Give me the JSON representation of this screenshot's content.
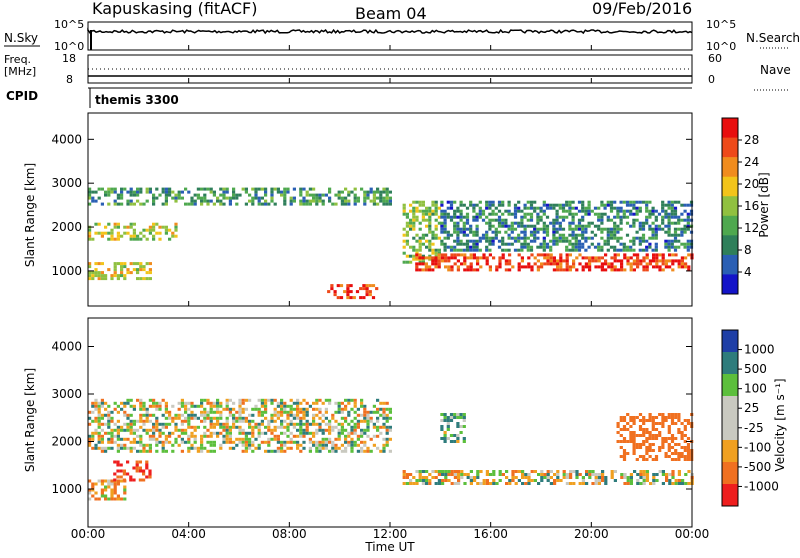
{
  "header": {
    "site": "Kapuskasing (fitACF)",
    "beam": "Beam 04",
    "date": "09/Feb/2016"
  },
  "panels": {
    "nsky": {
      "label": "N.Sky",
      "right_label": "N.Search",
      "ticks_left": [
        "10^5",
        "10^0"
      ],
      "ticks_right": [
        "10^5",
        "10^0"
      ]
    },
    "freq": {
      "label_line1": "Freq.",
      "label_line2": "[MHz]",
      "right_label": "Nave",
      "ticks_left": [
        "18",
        "8"
      ],
      "ticks_right": [
        "60",
        "0"
      ]
    },
    "cpid": {
      "label": "CPID",
      "value": "themis 3300"
    }
  },
  "axes": {
    "xlabel": "Time UT",
    "x_ticks": [
      "00:00",
      "04:00",
      "08:00",
      "12:00",
      "16:00",
      "20:00",
      "00:00"
    ],
    "ylabel": "Slant Range [km]",
    "y_ticks": [
      "1000",
      "2000",
      "3000",
      "4000"
    ]
  },
  "colorbars": {
    "power": {
      "label": "Power [dB]",
      "ticks": [
        "28",
        "24",
        "20",
        "16",
        "12",
        "8",
        "4"
      ]
    },
    "velocity": {
      "label": "Velocity  [m s⁻¹]",
      "ticks": [
        "1000",
        "500",
        "100",
        "25",
        "-25",
        "-100",
        "-500",
        "-1000"
      ]
    }
  },
  "colors": {
    "power_scale": [
      "#1414c8",
      "#2a5fb4",
      "#2f7f5a",
      "#4fa84f",
      "#90c040",
      "#f2c41a",
      "#f08c1e",
      "#ee4a1a",
      "#e80e0e"
    ],
    "velocity_scale": [
      "#1f3fa6",
      "#2e7c7c",
      "#5cbf3c",
      "#c9c9c0",
      "#c9c9c0",
      "#f0a020",
      "#f07020",
      "#ee1e1e"
    ]
  },
  "chart_data": [
    {
      "type": "line",
      "title": "N.Sky",
      "x": [
        0,
        2,
        4,
        6,
        8,
        10,
        12,
        14,
        16,
        18,
        20,
        22,
        24
      ],
      "series": [
        {
          "name": "N.Sky",
          "values": [
            100000,
            100000,
            100000,
            100000,
            100000,
            100000,
            100000,
            100000,
            100000,
            100000,
            100000,
            100000,
            100000
          ]
        }
      ]
    },
    {
      "type": "line",
      "title": "Freq.",
      "x": [
        0,
        24
      ],
      "series": [
        {
          "name": "Freq.",
          "values": [
            10,
            10
          ]
        },
        {
          "name": "Nave",
          "values": [
            38,
            38
          ]
        }
      ]
    },
    {
      "type": "heatmap",
      "title": "Power [dB]",
      "xlabel": "Time UT",
      "ylabel": "Slant Range [km]",
      "xlim": [
        0,
        24
      ],
      "ylim": [
        200,
        4600
      ],
      "clim": [
        0,
        30
      ],
      "features": [
        {
          "t": [
            0,
            12
          ],
          "range": [
            2500,
            2900
          ],
          "power": 10
        },
        {
          "t": [
            0,
            3.5
          ],
          "range": [
            1700,
            2100
          ],
          "power": 16
        },
        {
          "t": [
            0,
            2.5
          ],
          "range": [
            800,
            1200
          ],
          "power": 18
        },
        {
          "t": [
            9.5,
            11.5
          ],
          "range": [
            400,
            700
          ],
          "power": 26
        },
        {
          "t": [
            12.5,
            14
          ],
          "range": [
            1200,
            2600
          ],
          "power": 14
        },
        {
          "t": [
            13,
            24
          ],
          "range": [
            1000,
            1400
          ],
          "power": 26
        },
        {
          "t": [
            14,
            24
          ],
          "range": [
            1500,
            2600
          ],
          "power": 8
        }
      ]
    },
    {
      "type": "heatmap",
      "title": "Velocity [m s-1]",
      "xlabel": "Time UT",
      "ylabel": "Slant Range [km]",
      "xlim": [
        0,
        24
      ],
      "ylim": [
        200,
        4600
      ],
      "clim": [
        -1000,
        1000
      ],
      "features": [
        {
          "t": [
            0,
            12
          ],
          "range": [
            1800,
            2900
          ],
          "velocity": 0
        },
        {
          "t": [
            0,
            1.5
          ],
          "range": [
            800,
            1200
          ],
          "velocity": -100
        },
        {
          "t": [
            1,
            2.5
          ],
          "range": [
            1200,
            1600
          ],
          "velocity": -500
        },
        {
          "t": [
            12.5,
            24
          ],
          "range": [
            1100,
            1400
          ],
          "velocity": 0
        },
        {
          "t": [
            14,
            15
          ],
          "range": [
            2000,
            2600
          ],
          "velocity": 100
        },
        {
          "t": [
            21,
            24
          ],
          "range": [
            1600,
            2600
          ],
          "velocity": -300
        }
      ]
    }
  ]
}
